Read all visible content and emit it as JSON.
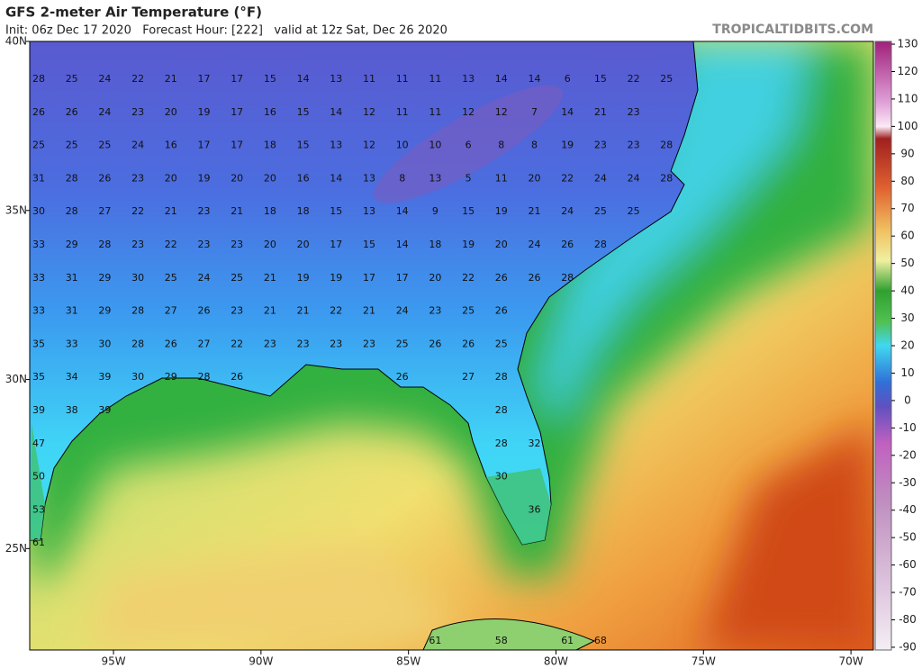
{
  "header": {
    "title": "GFS 2-meter Air Temperature (°F)",
    "subtitle": "Init: 06z Dec 17 2020   Forecast Hour: [222]   valid at 12z Sat, Dec 26 2020",
    "site": "TROPICALTIDBITS.COM"
  },
  "map": {
    "xlim": [
      -97.84,
      -69.24
    ],
    "ylim": [
      22.0,
      40.0
    ],
    "xticks": [
      {
        "value": -95,
        "label": "95W"
      },
      {
        "value": -90,
        "label": "90W"
      },
      {
        "value": -85,
        "label": "85W"
      },
      {
        "value": -80,
        "label": "80W"
      },
      {
        "value": -75,
        "label": "75W"
      },
      {
        "value": -70,
        "label": "70W"
      }
    ],
    "yticks": [
      {
        "value": 40,
        "label": "40N"
      },
      {
        "value": 35,
        "label": "35N"
      },
      {
        "value": 30,
        "label": "30N"
      },
      {
        "value": 25,
        "label": "25N"
      }
    ],
    "temperature_rows": [
      [
        28,
        25,
        24,
        22,
        21,
        17,
        17,
        15,
        14,
        13,
        11,
        11,
        11,
        13,
        14,
        14,
        6,
        15,
        22,
        25
      ],
      [
        26,
        26,
        24,
        23,
        20,
        19,
        17,
        16,
        15,
        14,
        12,
        11,
        11,
        12,
        12,
        7,
        14,
        21,
        23,
        null
      ],
      [
        25,
        25,
        25,
        24,
        16,
        17,
        17,
        18,
        15,
        13,
        12,
        10,
        10,
        6,
        8,
        8,
        19,
        23,
        23,
        28
      ],
      [
        31,
        28,
        26,
        23,
        20,
        19,
        20,
        20,
        16,
        14,
        13,
        8,
        13,
        5,
        11,
        20,
        22,
        24,
        24,
        28
      ],
      [
        30,
        28,
        27,
        22,
        21,
        23,
        21,
        18,
        18,
        15,
        13,
        14,
        9,
        15,
        19,
        21,
        24,
        25,
        25,
        null
      ],
      [
        33,
        29,
        28,
        23,
        22,
        23,
        23,
        20,
        20,
        17,
        15,
        14,
        18,
        19,
        20,
        24,
        26,
        28,
        null,
        null
      ],
      [
        33,
        31,
        29,
        30,
        25,
        24,
        25,
        21,
        19,
        19,
        17,
        17,
        20,
        22,
        26,
        26,
        28,
        null,
        null,
        null
      ],
      [
        33,
        31,
        29,
        28,
        27,
        26,
        23,
        21,
        21,
        22,
        21,
        24,
        23,
        25,
        26,
        null,
        null,
        null,
        null,
        null
      ],
      [
        35,
        33,
        30,
        28,
        26,
        27,
        22,
        23,
        23,
        23,
        23,
        25,
        26,
        26,
        25,
        null,
        null,
        null,
        null,
        null
      ],
      [
        35,
        34,
        39,
        30,
        29,
        28,
        26,
        null,
        null,
        null,
        null,
        26,
        null,
        27,
        28,
        null,
        null,
        null,
        null,
        null
      ],
      [
        39,
        38,
        39,
        null,
        null,
        null,
        null,
        null,
        null,
        null,
        null,
        null,
        null,
        null,
        28,
        null,
        null,
        null,
        null,
        null
      ],
      [
        47,
        null,
        null,
        null,
        null,
        null,
        null,
        null,
        null,
        null,
        null,
        null,
        null,
        null,
        28,
        32,
        null,
        null,
        null,
        null
      ],
      [
        50,
        null,
        null,
        null,
        null,
        null,
        null,
        null,
        null,
        null,
        null,
        null,
        null,
        null,
        30,
        null,
        null,
        null,
        null,
        null
      ],
      [
        53,
        null,
        null,
        null,
        null,
        null,
        null,
        null,
        null,
        null,
        null,
        null,
        null,
        null,
        null,
        36,
        null,
        null,
        null,
        null
      ],
      [
        61,
        null,
        null,
        null,
        null,
        null,
        null,
        null,
        null,
        null,
        null,
        null,
        null,
        null,
        null,
        null,
        null,
        null,
        null,
        null
      ]
    ],
    "bottom_row": [
      null,
      null,
      null,
      null,
      null,
      null,
      null,
      null,
      null,
      null,
      null,
      null,
      61,
      null,
      58,
      null,
      61,
      68,
      null,
      null
    ]
  },
  "colorbar": {
    "lim": [
      -91,
      131
    ],
    "ticks": [
      130,
      120,
      110,
      100,
      90,
      80,
      70,
      60,
      50,
      40,
      30,
      20,
      10,
      0,
      -10,
      -20,
      -30,
      -40,
      -50,
      -60,
      -70,
      -80,
      -90
    ]
  }
}
